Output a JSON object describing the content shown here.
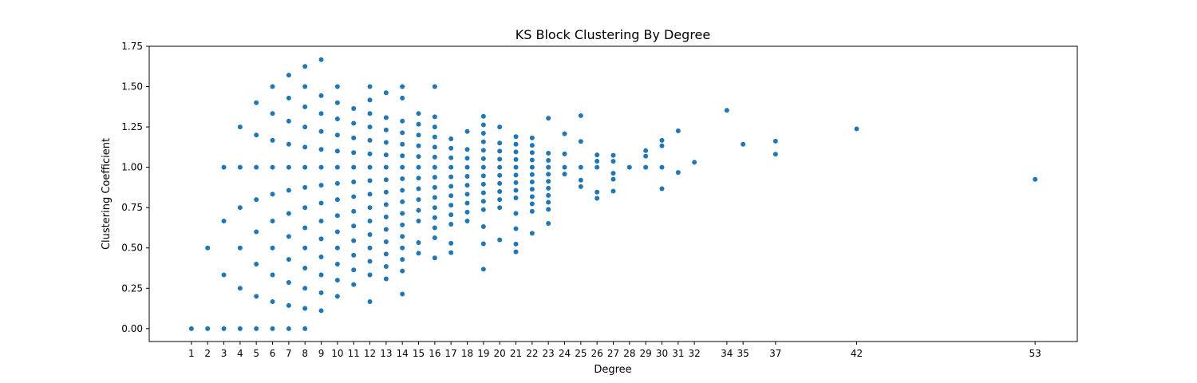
{
  "chart_data": {
    "type": "scatter",
    "title": "KS Block Clustering By Degree",
    "xlabel": "Degree",
    "ylabel": "Clustering Coefficient",
    "xlim": [
      -1.6,
      55.6
    ],
    "ylim": [
      -0.08,
      1.75
    ],
    "x_ticks": [
      1,
      2,
      3,
      4,
      5,
      6,
      7,
      8,
      9,
      10,
      11,
      12,
      13,
      14,
      15,
      16,
      17,
      18,
      19,
      20,
      21,
      22,
      23,
      24,
      25,
      26,
      27,
      28,
      29,
      30,
      31,
      32,
      34,
      35,
      37,
      42,
      53
    ],
    "y_ticks": [
      0.0,
      0.25,
      0.5,
      0.75,
      1.0,
      1.25,
      1.5,
      1.75
    ],
    "y_tick_labels": [
      "0.00",
      "0.25",
      "0.50",
      "0.75",
      "1.00",
      "1.25",
      "1.50",
      "1.75"
    ],
    "grid": false,
    "legend": "none",
    "color": "#1f77b4",
    "marker": "circle",
    "series": [
      {
        "points": [
          [
            1,
            0
          ],
          [
            2,
            0
          ],
          [
            2,
            0.5
          ],
          [
            3,
            0
          ],
          [
            3,
            0.333
          ],
          [
            3,
            0.667
          ],
          [
            3,
            1.0
          ],
          [
            4,
            0
          ],
          [
            4,
            0.25
          ],
          [
            4,
            0.5
          ],
          [
            4,
            0.75
          ],
          [
            4,
            1.0
          ],
          [
            4,
            1.25
          ],
          [
            5,
            0
          ],
          [
            5,
            0.2
          ],
          [
            5,
            0.4
          ],
          [
            5,
            0.6
          ],
          [
            5,
            0.8
          ],
          [
            5,
            1.0
          ],
          [
            5,
            1.2
          ],
          [
            5,
            1.4
          ],
          [
            6,
            0
          ],
          [
            6,
            0.167
          ],
          [
            6,
            0.333
          ],
          [
            6,
            0.5
          ],
          [
            6,
            0.667
          ],
          [
            6,
            0.833
          ],
          [
            6,
            1.0
          ],
          [
            6,
            1.167
          ],
          [
            6,
            1.333
          ],
          [
            6,
            1.5
          ],
          [
            7,
            0
          ],
          [
            7,
            0.143
          ],
          [
            7,
            0.286
          ],
          [
            7,
            0.429
          ],
          [
            7,
            0.571
          ],
          [
            7,
            0.714
          ],
          [
            7,
            0.857
          ],
          [
            7,
            1.0
          ],
          [
            7,
            1.143
          ],
          [
            7,
            1.286
          ],
          [
            7,
            1.429
          ],
          [
            7,
            1.571
          ],
          [
            8,
            0
          ],
          [
            8,
            0.125
          ],
          [
            8,
            0.25
          ],
          [
            8,
            0.375
          ],
          [
            8,
            0.5
          ],
          [
            8,
            0.625
          ],
          [
            8,
            0.75
          ],
          [
            8,
            0.875
          ],
          [
            8,
            1.0
          ],
          [
            8,
            1.125
          ],
          [
            8,
            1.25
          ],
          [
            8,
            1.375
          ],
          [
            8,
            1.5
          ],
          [
            8,
            1.625
          ],
          [
            9,
            0.111
          ],
          [
            9,
            0.222
          ],
          [
            9,
            0.333
          ],
          [
            9,
            0.444
          ],
          [
            9,
            0.556
          ],
          [
            9,
            0.667
          ],
          [
            9,
            0.778
          ],
          [
            9,
            0.889
          ],
          [
            9,
            1.0
          ],
          [
            9,
            1.111
          ],
          [
            9,
            1.222
          ],
          [
            9,
            1.333
          ],
          [
            9,
            1.444
          ],
          [
            9,
            1.667
          ],
          [
            10,
            0.2
          ],
          [
            10,
            0.3
          ],
          [
            10,
            0.4
          ],
          [
            10,
            0.5
          ],
          [
            10,
            0.6
          ],
          [
            10,
            0.7
          ],
          [
            10,
            0.8
          ],
          [
            10,
            0.9
          ],
          [
            10,
            1.0
          ],
          [
            10,
            1.1
          ],
          [
            10,
            1.2
          ],
          [
            10,
            1.3
          ],
          [
            10,
            1.4
          ],
          [
            10,
            1.5
          ],
          [
            11,
            0.273
          ],
          [
            11,
            0.364
          ],
          [
            11,
            0.455
          ],
          [
            11,
            0.545
          ],
          [
            11,
            0.636
          ],
          [
            11,
            0.727
          ],
          [
            11,
            0.818
          ],
          [
            11,
            0.909
          ],
          [
            11,
            1.0
          ],
          [
            11,
            1.091
          ],
          [
            11,
            1.182
          ],
          [
            11,
            1.273
          ],
          [
            11,
            1.364
          ],
          [
            12,
            0.167
          ],
          [
            12,
            0.333
          ],
          [
            12,
            0.417
          ],
          [
            12,
            0.5
          ],
          [
            12,
            0.583
          ],
          [
            12,
            0.667
          ],
          [
            12,
            0.75
          ],
          [
            12,
            0.833
          ],
          [
            12,
            0.917
          ],
          [
            12,
            1.0
          ],
          [
            12,
            1.083
          ],
          [
            12,
            1.167
          ],
          [
            12,
            1.25
          ],
          [
            12,
            1.333
          ],
          [
            12,
            1.417
          ],
          [
            12,
            1.5
          ],
          [
            13,
            0.308
          ],
          [
            13,
            0.385
          ],
          [
            13,
            0.462
          ],
          [
            13,
            0.538
          ],
          [
            13,
            0.615
          ],
          [
            13,
            0.692
          ],
          [
            13,
            0.769
          ],
          [
            13,
            0.846
          ],
          [
            13,
            0.923
          ],
          [
            13,
            1.0
          ],
          [
            13,
            1.077
          ],
          [
            13,
            1.154
          ],
          [
            13,
            1.231
          ],
          [
            13,
            1.308
          ],
          [
            13,
            1.462
          ],
          [
            14,
            0.214
          ],
          [
            14,
            0.357
          ],
          [
            14,
            0.429
          ],
          [
            14,
            0.5
          ],
          [
            14,
            0.571
          ],
          [
            14,
            0.643
          ],
          [
            14,
            0.714
          ],
          [
            14,
            0.786
          ],
          [
            14,
            0.857
          ],
          [
            14,
            0.929
          ],
          [
            14,
            1.0
          ],
          [
            14,
            1.071
          ],
          [
            14,
            1.143
          ],
          [
            14,
            1.214
          ],
          [
            14,
            1.286
          ],
          [
            14,
            1.429
          ],
          [
            14,
            1.5
          ],
          [
            15,
            0.467
          ],
          [
            15,
            0.533
          ],
          [
            15,
            0.667
          ],
          [
            15,
            0.733
          ],
          [
            15,
            0.8
          ],
          [
            15,
            0.867
          ],
          [
            15,
            0.933
          ],
          [
            15,
            1.0
          ],
          [
            15,
            1.067
          ],
          [
            15,
            1.133
          ],
          [
            15,
            1.2
          ],
          [
            15,
            1.267
          ],
          [
            15,
            1.333
          ],
          [
            16,
            0.438
          ],
          [
            16,
            0.563
          ],
          [
            16,
            0.625
          ],
          [
            16,
            0.688
          ],
          [
            16,
            0.75
          ],
          [
            16,
            0.813
          ],
          [
            16,
            0.875
          ],
          [
            16,
            0.938
          ],
          [
            16,
            1.0
          ],
          [
            16,
            1.063
          ],
          [
            16,
            1.125
          ],
          [
            16,
            1.188
          ],
          [
            16,
            1.25
          ],
          [
            16,
            1.313
          ],
          [
            16,
            1.5
          ],
          [
            17,
            0.471
          ],
          [
            17,
            0.529
          ],
          [
            17,
            0.647
          ],
          [
            17,
            0.706
          ],
          [
            17,
            0.765
          ],
          [
            17,
            0.824
          ],
          [
            17,
            0.882
          ],
          [
            17,
            0.941
          ],
          [
            17,
            1.0
          ],
          [
            17,
            1.059
          ],
          [
            17,
            1.118
          ],
          [
            17,
            1.176
          ],
          [
            18,
            0.667
          ],
          [
            18,
            0.722
          ],
          [
            18,
            0.778
          ],
          [
            18,
            0.833
          ],
          [
            18,
            0.889
          ],
          [
            18,
            0.944
          ],
          [
            18,
            1.0
          ],
          [
            18,
            1.056
          ],
          [
            18,
            1.111
          ],
          [
            18,
            1.222
          ],
          [
            19,
            0.368
          ],
          [
            19,
            0.526
          ],
          [
            19,
            0.632
          ],
          [
            19,
            0.737
          ],
          [
            19,
            0.789
          ],
          [
            19,
            0.842
          ],
          [
            19,
            0.895
          ],
          [
            19,
            0.947
          ],
          [
            19,
            1.0
          ],
          [
            19,
            1.053
          ],
          [
            19,
            1.105
          ],
          [
            19,
            1.158
          ],
          [
            19,
            1.211
          ],
          [
            19,
            1.263
          ],
          [
            19,
            1.316
          ],
          [
            20,
            0.55
          ],
          [
            20,
            0.75
          ],
          [
            20,
            0.8
          ],
          [
            20,
            0.85
          ],
          [
            20,
            0.9
          ],
          [
            20,
            0.95
          ],
          [
            20,
            1.0
          ],
          [
            20,
            1.05
          ],
          [
            20,
            1.1
          ],
          [
            20,
            1.15
          ],
          [
            20,
            1.25
          ],
          [
            21,
            0.476
          ],
          [
            21,
            0.524
          ],
          [
            21,
            0.619
          ],
          [
            21,
            0.714
          ],
          [
            21,
            0.81
          ],
          [
            21,
            0.857
          ],
          [
            21,
            0.905
          ],
          [
            21,
            0.952
          ],
          [
            21,
            1.0
          ],
          [
            21,
            1.048
          ],
          [
            21,
            1.095
          ],
          [
            21,
            1.143
          ],
          [
            21,
            1.19
          ],
          [
            22,
            0.591
          ],
          [
            22,
            0.727
          ],
          [
            22,
            0.773
          ],
          [
            22,
            0.818
          ],
          [
            22,
            0.864
          ],
          [
            22,
            0.909
          ],
          [
            22,
            0.955
          ],
          [
            22,
            1.0
          ],
          [
            22,
            1.045
          ],
          [
            22,
            1.091
          ],
          [
            22,
            1.136
          ],
          [
            22,
            1.182
          ],
          [
            23,
            0.652
          ],
          [
            23,
            0.739
          ],
          [
            23,
            0.783
          ],
          [
            23,
            0.826
          ],
          [
            23,
            0.87
          ],
          [
            23,
            0.913
          ],
          [
            23,
            0.957
          ],
          [
            23,
            1.0
          ],
          [
            23,
            1.043
          ],
          [
            23,
            1.087
          ],
          [
            23,
            1.304
          ],
          [
            24,
            0.958
          ],
          [
            24,
            1.0
          ],
          [
            24,
            1.083
          ],
          [
            24,
            1.208
          ],
          [
            25,
            0.88
          ],
          [
            25,
            0.92
          ],
          [
            25,
            1.0
          ],
          [
            25,
            1.16
          ],
          [
            25,
            1.32
          ],
          [
            26,
            0.808
          ],
          [
            26,
            0.846
          ],
          [
            26,
            1.0
          ],
          [
            26,
            1.038
          ],
          [
            26,
            1.077
          ],
          [
            27,
            0.852
          ],
          [
            27,
            0.926
          ],
          [
            27,
            0.963
          ],
          [
            27,
            1.037
          ],
          [
            27,
            1.074
          ],
          [
            28,
            1.0
          ],
          [
            29,
            1.0
          ],
          [
            29,
            1.069
          ],
          [
            29,
            1.103
          ],
          [
            30,
            0.867
          ],
          [
            30,
            1.0
          ],
          [
            30,
            1.133
          ],
          [
            30,
            1.167
          ],
          [
            31,
            0.968
          ],
          [
            31,
            1.226
          ],
          [
            32,
            1.031
          ],
          [
            34,
            1.353
          ],
          [
            35,
            1.143
          ],
          [
            37,
            1.081
          ],
          [
            37,
            1.162
          ],
          [
            42,
            1.238
          ],
          [
            53,
            0.925
          ]
        ]
      }
    ]
  }
}
